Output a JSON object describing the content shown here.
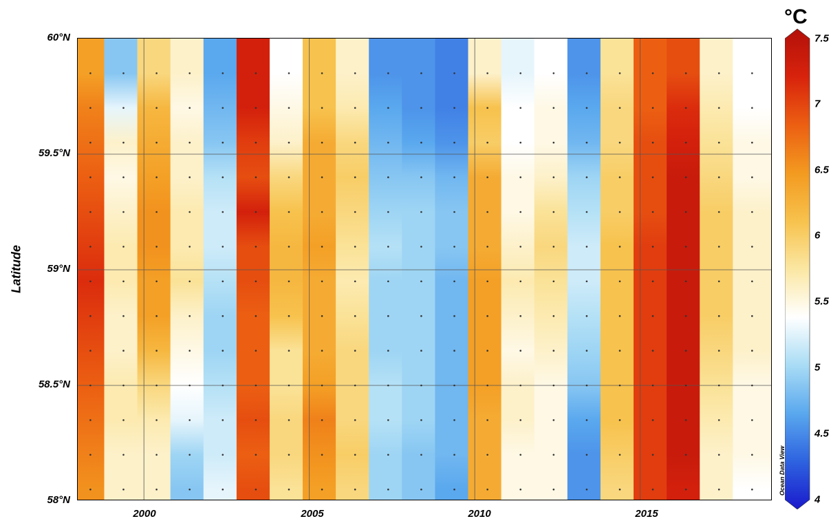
{
  "colorbar": {
    "unit": "°C",
    "min": 4,
    "max": 7.5,
    "ticks": [
      "7.5",
      "7",
      "6.5",
      "6",
      "5.5",
      "5",
      "4.5",
      "4"
    ],
    "stops": [
      "#1a1acc",
      "#2e63e0",
      "#5aa8ee",
      "#a9dcf5",
      "#ffffff",
      "#fbe7a3",
      "#f7c24d",
      "#f39a20",
      "#ec5f12",
      "#d8230c",
      "#b3100a"
    ]
  },
  "watermark": "Ocean Data View",
  "chart_data": {
    "type": "heatmap",
    "title": "",
    "xlabel": "",
    "ylabel": "Latitude",
    "xlim": [
      1998,
      2019
    ],
    "ylim": [
      58.0,
      60.0
    ],
    "xticks": [
      "2000",
      "2005",
      "2010",
      "2015"
    ],
    "yticks": [
      "60°N",
      "59.5°N",
      "59°N",
      "58.5°N",
      "58°N"
    ],
    "value_unit": "°C",
    "sample_latitudes": [
      59.85,
      59.7,
      59.55,
      59.4,
      59.25,
      59.1,
      58.95,
      58.8,
      58.65,
      58.5,
      58.35,
      58.2,
      58.05
    ],
    "columns": [
      {
        "year": 1998.3,
        "values": [
          6.4,
          6.6,
          6.7,
          6.8,
          6.9,
          7.0,
          7.1,
          7.0,
          6.9,
          6.8,
          6.7,
          6.6,
          6.5
        ]
      },
      {
        "year": 1999.3,
        "values": [
          4.9,
          5.3,
          5.6,
          5.5,
          5.6,
          5.7,
          5.7,
          5.6,
          5.6,
          5.7,
          5.7,
          5.6,
          5.6
        ]
      },
      {
        "year": 2000.3,
        "values": [
          5.9,
          6.2,
          6.3,
          6.4,
          6.5,
          6.5,
          6.4,
          6.4,
          6.2,
          5.9,
          5.7,
          5.6,
          5.6
        ]
      },
      {
        "year": 2001.3,
        "values": [
          5.6,
          5.5,
          5.6,
          5.6,
          5.7,
          5.7,
          5.8,
          5.6,
          5.5,
          5.4,
          5.3,
          5.0,
          4.9
        ]
      },
      {
        "year": 2002.3,
        "values": [
          4.7,
          4.8,
          4.9,
          5.1,
          5.2,
          5.2,
          5.1,
          5.0,
          5.0,
          5.1,
          5.2,
          5.2,
          5.3
        ]
      },
      {
        "year": 2003.3,
        "values": [
          7.2,
          7.2,
          7.0,
          6.9,
          7.2,
          6.9,
          6.9,
          6.8,
          6.8,
          6.8,
          6.9,
          6.8,
          6.9
        ]
      },
      {
        "year": 2004.3,
        "values": [
          5.4,
          5.5,
          5.6,
          5.9,
          6.1,
          6.2,
          6.2,
          6.1,
          5.8,
          5.8,
          5.9,
          5.9,
          5.8
        ]
      },
      {
        "year": 2005.3,
        "values": [
          6.1,
          6.1,
          6.3,
          6.3,
          6.3,
          6.4,
          6.3,
          6.3,
          6.3,
          6.4,
          6.6,
          6.5,
          6.4
        ]
      },
      {
        "year": 2006.3,
        "values": [
          5.6,
          5.7,
          5.9,
          6.0,
          5.9,
          5.8,
          5.7,
          5.8,
          5.9,
          5.9,
          5.9,
          6.0,
          5.9
        ]
      },
      {
        "year": 2007.3,
        "values": [
          4.6,
          4.7,
          4.8,
          4.9,
          5.0,
          5.1,
          5.0,
          5.0,
          5.0,
          5.1,
          5.1,
          5.0,
          5.0
        ]
      },
      {
        "year": 2008.3,
        "values": [
          4.6,
          4.6,
          4.7,
          4.9,
          5.0,
          5.0,
          5.0,
          5.0,
          5.0,
          5.0,
          5.0,
          4.9,
          4.9
        ]
      },
      {
        "year": 2009.3,
        "values": [
          4.5,
          4.5,
          4.6,
          4.8,
          4.9,
          4.9,
          4.8,
          4.8,
          4.8,
          4.8,
          4.8,
          4.8,
          4.7
        ]
      },
      {
        "year": 2010.3,
        "values": [
          5.6,
          6.1,
          6.0,
          6.3,
          6.3,
          6.3,
          6.4,
          6.4,
          6.4,
          6.4,
          6.3,
          6.3,
          6.3
        ]
      },
      {
        "year": 2011.3,
        "values": [
          5.3,
          5.4,
          5.4,
          5.5,
          5.5,
          5.6,
          5.7,
          5.6,
          5.5,
          5.6,
          5.6,
          5.5,
          5.5
        ]
      },
      {
        "year": 2012.3,
        "values": [
          5.4,
          5.5,
          5.5,
          5.6,
          5.8,
          5.9,
          5.8,
          5.7,
          5.6,
          5.5,
          5.5,
          5.5,
          5.5
        ]
      },
      {
        "year": 2013.3,
        "values": [
          4.6,
          4.7,
          4.8,
          5.0,
          5.1,
          5.2,
          5.2,
          5.1,
          5.0,
          4.9,
          4.7,
          4.6,
          4.6
        ]
      },
      {
        "year": 2014.3,
        "values": [
          5.8,
          5.9,
          5.9,
          6.0,
          6.0,
          6.1,
          6.1,
          6.1,
          6.1,
          6.1,
          6.1,
          6.0,
          5.9
        ]
      },
      {
        "year": 2015.3,
        "values": [
          6.8,
          6.8,
          6.9,
          6.9,
          6.9,
          7.0,
          7.0,
          7.0,
          7.0,
          7.0,
          7.0,
          7.0,
          7.0
        ]
      },
      {
        "year": 2016.3,
        "values": [
          6.9,
          7.1,
          7.2,
          7.3,
          7.3,
          7.3,
          7.3,
          7.3,
          7.3,
          7.3,
          7.3,
          7.3,
          7.2
        ]
      },
      {
        "year": 2017.3,
        "values": [
          5.6,
          5.7,
          5.8,
          5.9,
          6.0,
          6.0,
          6.0,
          6.0,
          5.9,
          5.8,
          5.7,
          5.6,
          5.6
        ]
      },
      {
        "year": 2018.3,
        "values": [
          5.4,
          5.4,
          5.5,
          5.5,
          5.6,
          5.6,
          5.6,
          5.6,
          5.6,
          5.5,
          5.5,
          5.5,
          5.4
        ]
      }
    ]
  }
}
